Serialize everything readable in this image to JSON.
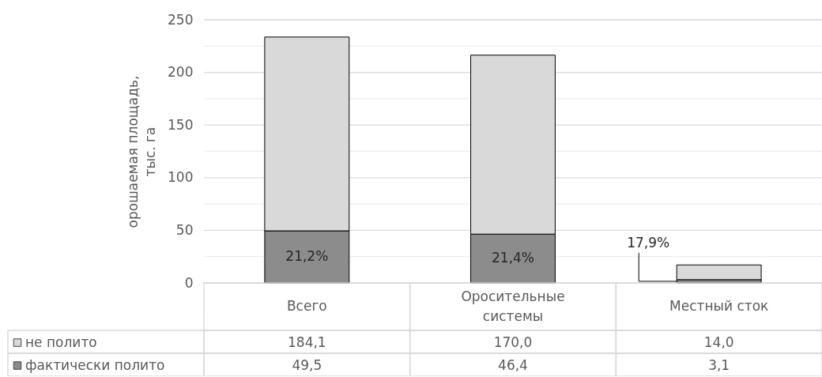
{
  "chart_data": {
    "type": "bar",
    "stacked": true,
    "ylabel": "орошаемая площадь, тыс. га",
    "categories": [
      "Всего",
      "Оросительные системы",
      "Местный сток"
    ],
    "series": [
      {
        "name": "фактически полито",
        "color": "#8c8c8c",
        "values": [
          49.5,
          46.4,
          3.1
        ],
        "value_labels": [
          "49,5",
          "46,4",
          "3,1"
        ]
      },
      {
        "name": "не полито",
        "color": "#d9d9d9",
        "values": [
          184.1,
          170.0,
          14.0
        ],
        "value_labels": [
          "184,1",
          "170,0",
          "14,0"
        ]
      }
    ],
    "ylim": [
      0,
      250
    ],
    "yticks": [
      0,
      {
        "value": 25,
        "label": null
      },
      50,
      {
        "value": 75,
        "label": null
      },
      100,
      {
        "value": 125,
        "label": null
      },
      150,
      {
        "value": 175,
        "label": null
      },
      200,
      {
        "value": 225,
        "label": null
      },
      250
    ],
    "grid": "y",
    "legend": "bottom",
    "annotations": [
      "21,2%",
      "21,4%",
      "17,9%"
    ]
  }
}
